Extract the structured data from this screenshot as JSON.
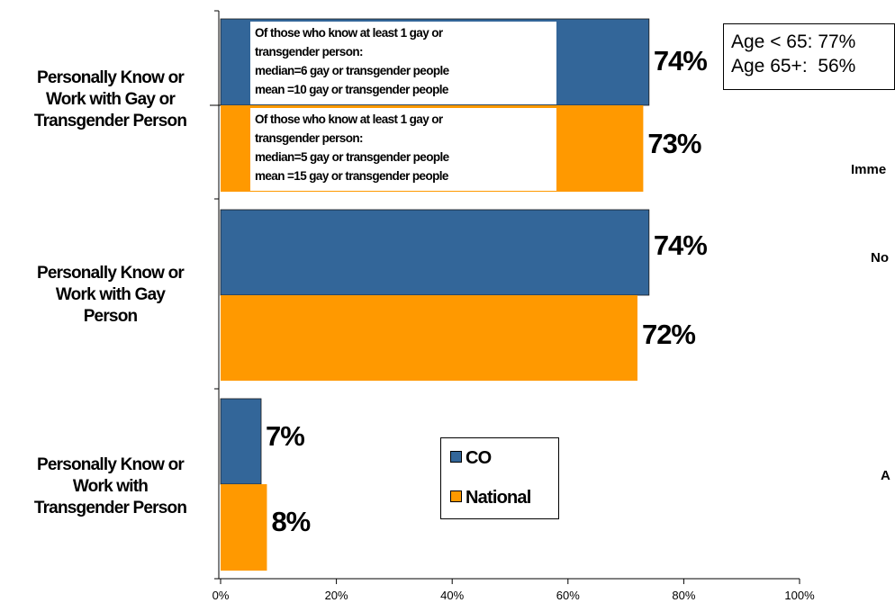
{
  "chart_data": {
    "type": "bar",
    "orientation": "horizontal",
    "categories": [
      "Personally Know or Work with Gay or Transgender Person",
      "Personally Know or Work with Gay Person",
      "Personally Know or Work with Transgender Person"
    ],
    "series": [
      {
        "name": "CO",
        "color": "#336699",
        "values": [
          74,
          74,
          7
        ]
      },
      {
        "name": "National",
        "color": "#FF9900",
        "values": [
          73,
          72,
          8
        ]
      }
    ],
    "value_labels": [
      [
        "74%",
        "73%"
      ],
      [
        "74%",
        "72%"
      ],
      [
        "7%",
        "8%"
      ]
    ],
    "xlim": [
      0,
      100
    ],
    "xticks": [
      "0%",
      "20%",
      "40%",
      "60%",
      "80%",
      "100%"
    ],
    "grid": false,
    "legend_position": "bottom-center"
  },
  "category_labels": [
    "Personally Know or\nWork with Gay or\nTransgender Person",
    "Personally Know or\nWork with Gay\nPerson",
    "Personally Know or\nWork with\nTransgender Person"
  ],
  "notes": {
    "co": [
      "Of those who know at least 1 gay or",
      "transgender person:",
      "median=6 gay or transgender people",
      "mean =10 gay or transgender people"
    ],
    "national": [
      "Of those who know at least 1 gay or",
      "transgender person:",
      "median=5 gay or transgender people",
      "mean =15 gay or transgender people"
    ]
  },
  "callout": {
    "line1": "Age < 65: 77%",
    "line2": "Age 65+:  56%"
  },
  "legend": {
    "co": "CO",
    "national": "National"
  },
  "cut_off_text": [
    "Imme",
    "No",
    "A"
  ],
  "colors": {
    "co": "#336699",
    "national": "#FF9900",
    "axis": "#000000"
  }
}
